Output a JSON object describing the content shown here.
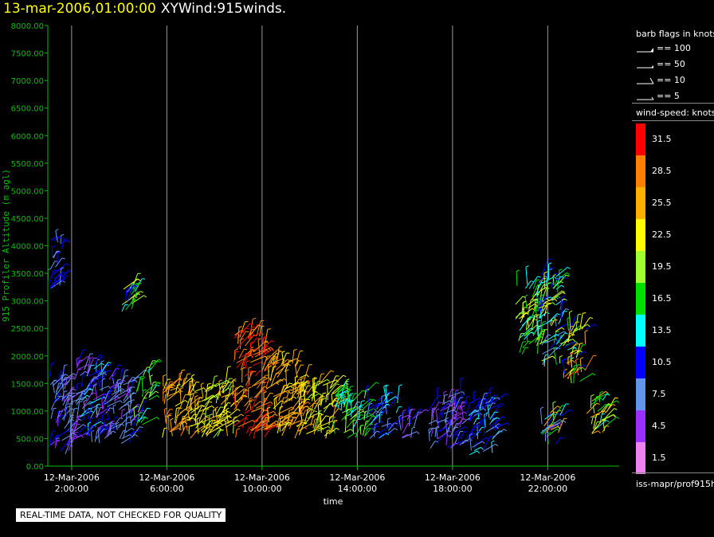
{
  "title": {
    "date": "13-mar-2006,01:00:00",
    "name": "XYWind:915winds."
  },
  "notice": "REAL-TIME DATA, NOT CHECKED FOR QUALITY",
  "legend": {
    "barb_header": "barb flags in knots",
    "barb_flags": [
      {
        "label": "== 100",
        "kind": "pennant"
      },
      {
        "label": "== 50",
        "kind": "triangle"
      },
      {
        "label": "== 10",
        "kind": "full"
      },
      {
        "label": "== 5",
        "kind": "half"
      }
    ],
    "speed_header": "wind-speed: knots",
    "scale": [
      {
        "label": "31.5",
        "color": "#ff0000"
      },
      {
        "label": "28.5",
        "color": "#ff8000"
      },
      {
        "label": "25.5",
        "color": "#ffb000"
      },
      {
        "label": "22.5",
        "color": "#ffff00"
      },
      {
        "label": "19.5",
        "color": "#a0ff30"
      },
      {
        "label": "16.5",
        "color": "#00e000"
      },
      {
        "label": "13.5",
        "color": "#00ffff"
      },
      {
        "label": "10.5",
        "color": "#0000ff"
      },
      {
        "label": "7.5",
        "color": "#6495ed"
      },
      {
        "label": "4.5",
        "color": "#9a30ff"
      },
      {
        "label": "1.5",
        "color": "#ee82ee"
      }
    ],
    "source": "iss-mapr/prof915h"
  },
  "chart_data": {
    "type": "scatter",
    "ylabel": "915 Profiler Altitude (m agl)",
    "xlabel": "time",
    "ylim": [
      0,
      8000
    ],
    "yticks": [
      "0.00",
      "500.00",
      "1000.00",
      "1500.00",
      "2000.00",
      "2500.00",
      "3000.00",
      "3500.00",
      "4000.00",
      "4500.00",
      "5000.00",
      "5500.00",
      "6000.00",
      "6500.00",
      "7000.00",
      "7500.00",
      "8000.00"
    ],
    "xticks": [
      {
        "date": "12-Mar-2006",
        "time": "2:00:00",
        "hour": 2
      },
      {
        "date": "12-Mar-2006",
        "time": "6:00:00",
        "hour": 6
      },
      {
        "date": "12-Mar-2006",
        "time": "10:00:00",
        "hour": 10
      },
      {
        "date": "12-Mar-2006",
        "time": "14:00:00",
        "hour": 14
      },
      {
        "date": "12-Mar-2006",
        "time": "18:00:00",
        "hour": 18
      },
      {
        "date": "12-Mar-2006",
        "time": "22:00:00",
        "hour": 22
      }
    ],
    "xlim_hours": [
      1,
      25
    ],
    "vertical_gridlines": true,
    "axis_color": "#00c000",
    "wind_clusters": [
      {
        "hour_start": 1.0,
        "hour_end": 2.2,
        "alt_min": 200,
        "alt_max": 1600,
        "speed": "4.5-10.5 kt"
      },
      {
        "hour_start": 2.2,
        "hour_end": 3.3,
        "alt_min": 400,
        "alt_max": 1900,
        "speed": "4.5-13.5 kt"
      },
      {
        "hour_start": 3.3,
        "hour_end": 4.6,
        "alt_min": 400,
        "alt_max": 1600,
        "speed": "4.5-10.5 kt"
      },
      {
        "hour_start": 4.6,
        "hour_end": 5.0,
        "alt_min": 700,
        "alt_max": 1400,
        "speed": "10.5-19.5 kt"
      },
      {
        "hour_start": 5.0,
        "hour_end": 5.4,
        "alt_min": 1200,
        "alt_max": 1900,
        "speed": "13.5-19.5 kt"
      },
      {
        "hour_start": 1.0,
        "hour_end": 1.6,
        "alt_min": 3200,
        "alt_max": 4200,
        "speed": "7.5-10.5 kt"
      },
      {
        "hour_start": 3.9,
        "hour_end": 4.7,
        "alt_min": 2800,
        "alt_max": 3300,
        "speed": "7.5-22.5 kt"
      },
      {
        "hour_start": 5.8,
        "hour_end": 7.0,
        "alt_min": 500,
        "alt_max": 1500,
        "speed": "22.5-28.5 kt"
      },
      {
        "hour_start": 7.0,
        "hour_end": 8.8,
        "alt_min": 500,
        "alt_max": 1500,
        "speed": "19.5-25.5 kt"
      },
      {
        "hour_start": 8.8,
        "hour_end": 10.2,
        "alt_min": 500,
        "alt_max": 2400,
        "speed": "25.5-31.5 kt"
      },
      {
        "hour_start": 10.2,
        "hour_end": 11.8,
        "alt_min": 500,
        "alt_max": 1900,
        "speed": "22.5-28.5 kt"
      },
      {
        "hour_start": 11.8,
        "hour_end": 13.0,
        "alt_min": 500,
        "alt_max": 1500,
        "speed": "19.5-25.5 kt"
      },
      {
        "hour_start": 13.0,
        "hour_end": 14.4,
        "alt_min": 500,
        "alt_max": 1400,
        "speed": "13.5-19.5 kt"
      },
      {
        "hour_start": 14.4,
        "hour_end": 15.7,
        "alt_min": 500,
        "alt_max": 1200,
        "speed": "7.5-13.5 kt"
      },
      {
        "hour_start": 15.7,
        "hour_end": 16.4,
        "alt_min": 500,
        "alt_max": 900,
        "speed": "4.5-10.5 kt"
      },
      {
        "hour_start": 17.0,
        "hour_end": 18.5,
        "alt_min": 300,
        "alt_max": 1300,
        "speed": "4.5-10.5 kt"
      },
      {
        "hour_start": 18.5,
        "hour_end": 19.8,
        "alt_min": 200,
        "alt_max": 1200,
        "speed": "7.5-13.5 kt"
      },
      {
        "hour_start": 20.6,
        "hour_end": 21.6,
        "alt_min": 2000,
        "alt_max": 3300,
        "speed": "13.5-22.5 kt"
      },
      {
        "hour_start": 21.6,
        "hour_end": 22.6,
        "alt_min": 1800,
        "alt_max": 3500,
        "speed": "7.5-22.5 kt"
      },
      {
        "hour_start": 22.6,
        "hour_end": 23.6,
        "alt_min": 1500,
        "alt_max": 2500,
        "speed": "10.5-31.5 kt"
      },
      {
        "hour_start": 21.7,
        "hour_end": 22.6,
        "alt_min": 400,
        "alt_max": 1000,
        "speed": "4.5-28.5 kt"
      },
      {
        "hour_start": 23.6,
        "hour_end": 24.5,
        "alt_min": 500,
        "alt_max": 1200,
        "speed": "13.5-25.5 kt"
      }
    ]
  }
}
